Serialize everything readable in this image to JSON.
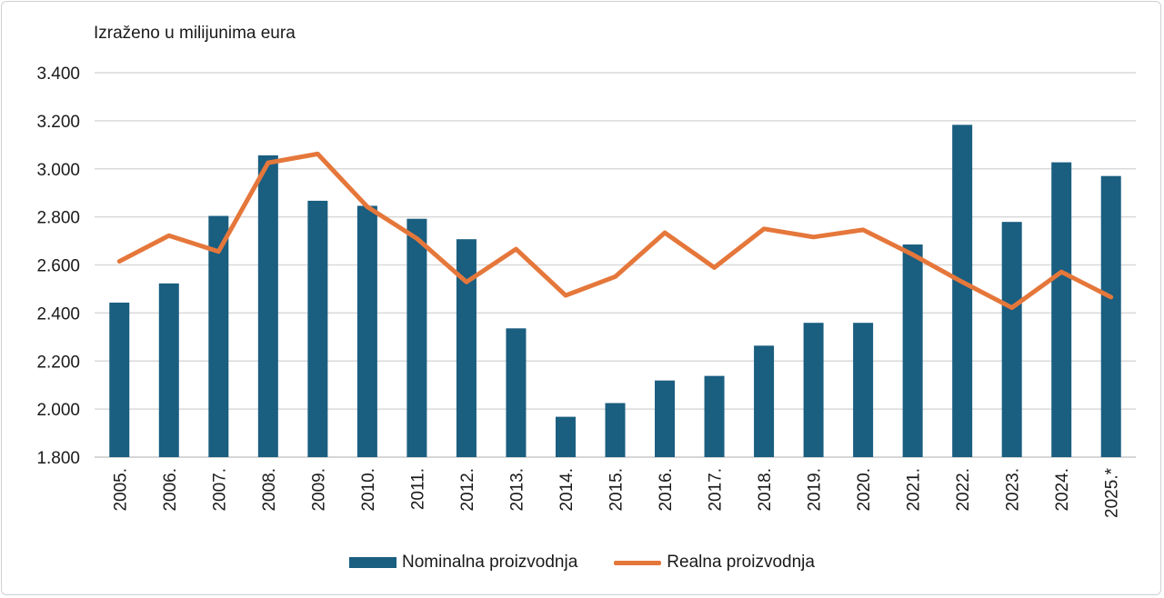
{
  "chart_data": {
    "type": "bar",
    "title": "",
    "ylabel": "Izraženo u milijunima eura",
    "xlabel": "",
    "ylim": [
      1800,
      3400
    ],
    "yticks": [
      1800,
      2000,
      2200,
      2400,
      2600,
      2800,
      3000,
      3200,
      3400
    ],
    "ytick_labels": [
      "1.800",
      "2.000",
      "2.200",
      "2.400",
      "2.600",
      "2.800",
      "3.000",
      "3.200",
      "3.400"
    ],
    "grid": true,
    "legend_position": "bottom",
    "categories": [
      "2005.",
      "2006.",
      "2007.",
      "2008.",
      "2009.",
      "2010.",
      "2011.",
      "2012.",
      "2013.",
      "2014.",
      "2015.",
      "2016.",
      "2017.",
      "2018.",
      "2019.",
      "2020.",
      "2021.",
      "2022.",
      "2023.",
      "2024.",
      "2025.*"
    ],
    "series": [
      {
        "name": "Nominalna proizvodnja",
        "type": "bar",
        "color": "#1a5e80",
        "values": [
          2443,
          2523,
          2804,
          3056,
          2867,
          2846,
          2792,
          2707,
          2336,
          1968,
          2025,
          2119,
          2138,
          2264,
          2359,
          2359,
          2685,
          3183,
          2779,
          3027,
          2970
        ]
      },
      {
        "name": "Realna proizvodnja",
        "type": "line",
        "color": "#e5773b",
        "values": [
          2615,
          2722,
          2656,
          3025,
          3062,
          2842,
          2710,
          2529,
          2666,
          2473,
          2551,
          2734,
          2589,
          2750,
          2716,
          2746,
          2643,
          2529,
          2422,
          2571,
          2466
        ]
      }
    ]
  }
}
